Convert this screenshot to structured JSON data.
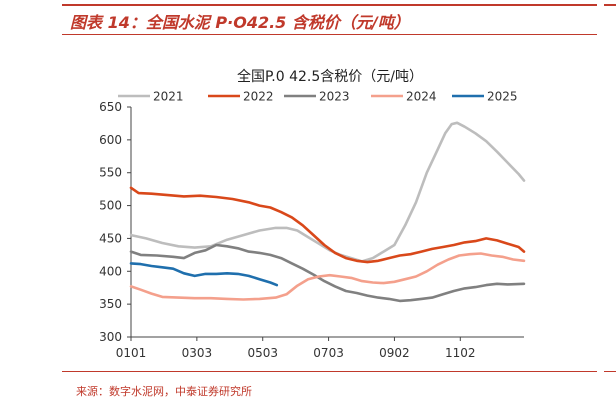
{
  "figure": {
    "title": "图表 14：全国水泥 P·O42.5 含税价（元/吨）",
    "source": "来源：数字水泥网，中泰证券研究所"
  },
  "colors": {
    "accent": "#c0392b"
  },
  "chart_data": {
    "type": "line",
    "title": "全国P.0 42.5含税价（元/吨）",
    "xlabel": "",
    "ylabel": "",
    "ylim": [
      300,
      650
    ],
    "yticks": [
      "650",
      "600",
      "550",
      "500",
      "450",
      "400",
      "350",
      "300"
    ],
    "xticks": [
      "0101",
      "0303",
      "0503",
      "0703",
      "0902",
      "1102"
    ],
    "legend_position": "top",
    "grid": false,
    "series": [
      {
        "name": "2021",
        "color": "#bdbdbd",
        "points": [
          [
            1,
            455
          ],
          [
            15,
            450
          ],
          [
            30,
            443
          ],
          [
            45,
            438
          ],
          [
            60,
            436
          ],
          [
            75,
            438
          ],
          [
            90,
            448
          ],
          [
            105,
            455
          ],
          [
            120,
            462
          ],
          [
            135,
            466
          ],
          [
            145,
            466
          ],
          [
            155,
            462
          ],
          [
            165,
            452
          ],
          [
            175,
            442
          ],
          [
            185,
            432
          ],
          [
            195,
            425
          ],
          [
            205,
            420
          ],
          [
            215,
            415
          ],
          [
            225,
            420
          ],
          [
            235,
            430
          ],
          [
            245,
            440
          ],
          [
            255,
            470
          ],
          [
            265,
            505
          ],
          [
            275,
            550
          ],
          [
            285,
            585
          ],
          [
            292,
            610
          ],
          [
            298,
            624
          ],
          [
            303,
            626
          ],
          [
            310,
            620
          ],
          [
            320,
            610
          ],
          [
            330,
            598
          ],
          [
            340,
            582
          ],
          [
            350,
            565
          ],
          [
            360,
            548
          ],
          [
            365,
            538
          ]
        ]
      },
      {
        "name": "2022",
        "color": "#d9481a",
        "points": [
          [
            1,
            527
          ],
          [
            8,
            519
          ],
          [
            20,
            518
          ],
          [
            35,
            516
          ],
          [
            50,
            514
          ],
          [
            65,
            515
          ],
          [
            80,
            513
          ],
          [
            95,
            510
          ],
          [
            110,
            505
          ],
          [
            120,
            500
          ],
          [
            130,
            497
          ],
          [
            140,
            490
          ],
          [
            150,
            482
          ],
          [
            160,
            470
          ],
          [
            170,
            455
          ],
          [
            180,
            440
          ],
          [
            190,
            428
          ],
          [
            200,
            420
          ],
          [
            210,
            416
          ],
          [
            220,
            414
          ],
          [
            230,
            416
          ],
          [
            240,
            420
          ],
          [
            250,
            424
          ],
          [
            260,
            426
          ],
          [
            270,
            430
          ],
          [
            280,
            434
          ],
          [
            290,
            437
          ],
          [
            300,
            440
          ],
          [
            310,
            444
          ],
          [
            320,
            446
          ],
          [
            330,
            450
          ],
          [
            340,
            447
          ],
          [
            350,
            442
          ],
          [
            360,
            437
          ],
          [
            365,
            430
          ]
        ]
      },
      {
        "name": "2023",
        "color": "#808080",
        "points": [
          [
            1,
            430
          ],
          [
            10,
            425
          ],
          [
            25,
            424
          ],
          [
            40,
            422
          ],
          [
            50,
            420
          ],
          [
            60,
            428
          ],
          [
            70,
            432
          ],
          [
            80,
            440
          ],
          [
            90,
            438
          ],
          [
            100,
            435
          ],
          [
            110,
            430
          ],
          [
            120,
            428
          ],
          [
            130,
            425
          ],
          [
            140,
            420
          ],
          [
            150,
            412
          ],
          [
            160,
            404
          ],
          [
            170,
            395
          ],
          [
            180,
            385
          ],
          [
            190,
            377
          ],
          [
            200,
            370
          ],
          [
            210,
            367
          ],
          [
            220,
            363
          ],
          [
            230,
            360
          ],
          [
            240,
            358
          ],
          [
            250,
            355
          ],
          [
            260,
            356
          ],
          [
            270,
            358
          ],
          [
            280,
            360
          ],
          [
            290,
            365
          ],
          [
            300,
            370
          ],
          [
            310,
            374
          ],
          [
            320,
            376
          ],
          [
            330,
            379
          ],
          [
            340,
            381
          ],
          [
            350,
            380
          ],
          [
            365,
            381
          ]
        ]
      },
      {
        "name": "2024",
        "color": "#f4a08c",
        "points": [
          [
            1,
            377
          ],
          [
            10,
            372
          ],
          [
            20,
            366
          ],
          [
            30,
            361
          ],
          [
            45,
            360
          ],
          [
            60,
            359
          ],
          [
            75,
            359
          ],
          [
            90,
            358
          ],
          [
            105,
            357
          ],
          [
            120,
            358
          ],
          [
            135,
            360
          ],
          [
            145,
            365
          ],
          [
            155,
            378
          ],
          [
            165,
            388
          ],
          [
            175,
            392
          ],
          [
            185,
            394
          ],
          [
            195,
            392
          ],
          [
            205,
            390
          ],
          [
            215,
            385
          ],
          [
            225,
            383
          ],
          [
            235,
            382
          ],
          [
            245,
            384
          ],
          [
            255,
            388
          ],
          [
            265,
            392
          ],
          [
            275,
            400
          ],
          [
            285,
            410
          ],
          [
            295,
            418
          ],
          [
            305,
            424
          ],
          [
            315,
            426
          ],
          [
            325,
            427
          ],
          [
            335,
            424
          ],
          [
            345,
            422
          ],
          [
            355,
            418
          ],
          [
            365,
            416
          ]
        ]
      },
      {
        "name": "2025",
        "color": "#1f6fad",
        "points": [
          [
            1,
            412
          ],
          [
            10,
            411
          ],
          [
            20,
            408
          ],
          [
            30,
            406
          ],
          [
            40,
            404
          ],
          [
            50,
            397
          ],
          [
            60,
            393
          ],
          [
            70,
            396
          ],
          [
            80,
            396
          ],
          [
            90,
            397
          ],
          [
            100,
            396
          ],
          [
            110,
            393
          ],
          [
            120,
            388
          ],
          [
            130,
            383
          ],
          [
            136,
            379
          ]
        ]
      }
    ]
  }
}
